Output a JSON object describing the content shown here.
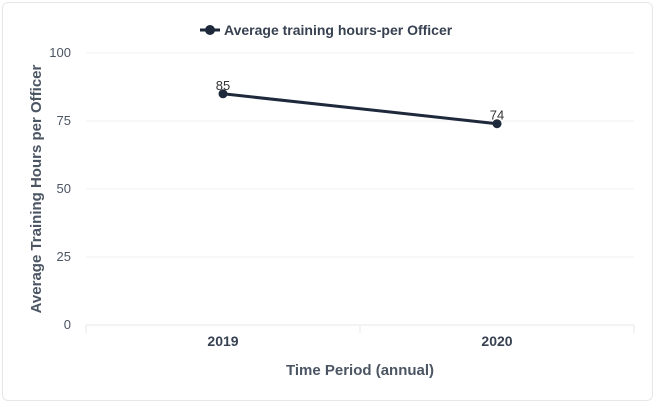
{
  "chart_data": {
    "type": "line",
    "categories": [
      "2019",
      "2020"
    ],
    "series": [
      {
        "name": "Average training hours-per Officer",
        "values": [
          85,
          74
        ],
        "color": "#1e293b"
      }
    ],
    "xlabel": "Time Period (annual)",
    "ylabel": "Average Training Hours per Officer",
    "ylim": [
      0,
      100
    ],
    "yticks": [
      0,
      25,
      50,
      75,
      100
    ],
    "grid": true,
    "legend_position": "top-center",
    "data_labels": true
  }
}
